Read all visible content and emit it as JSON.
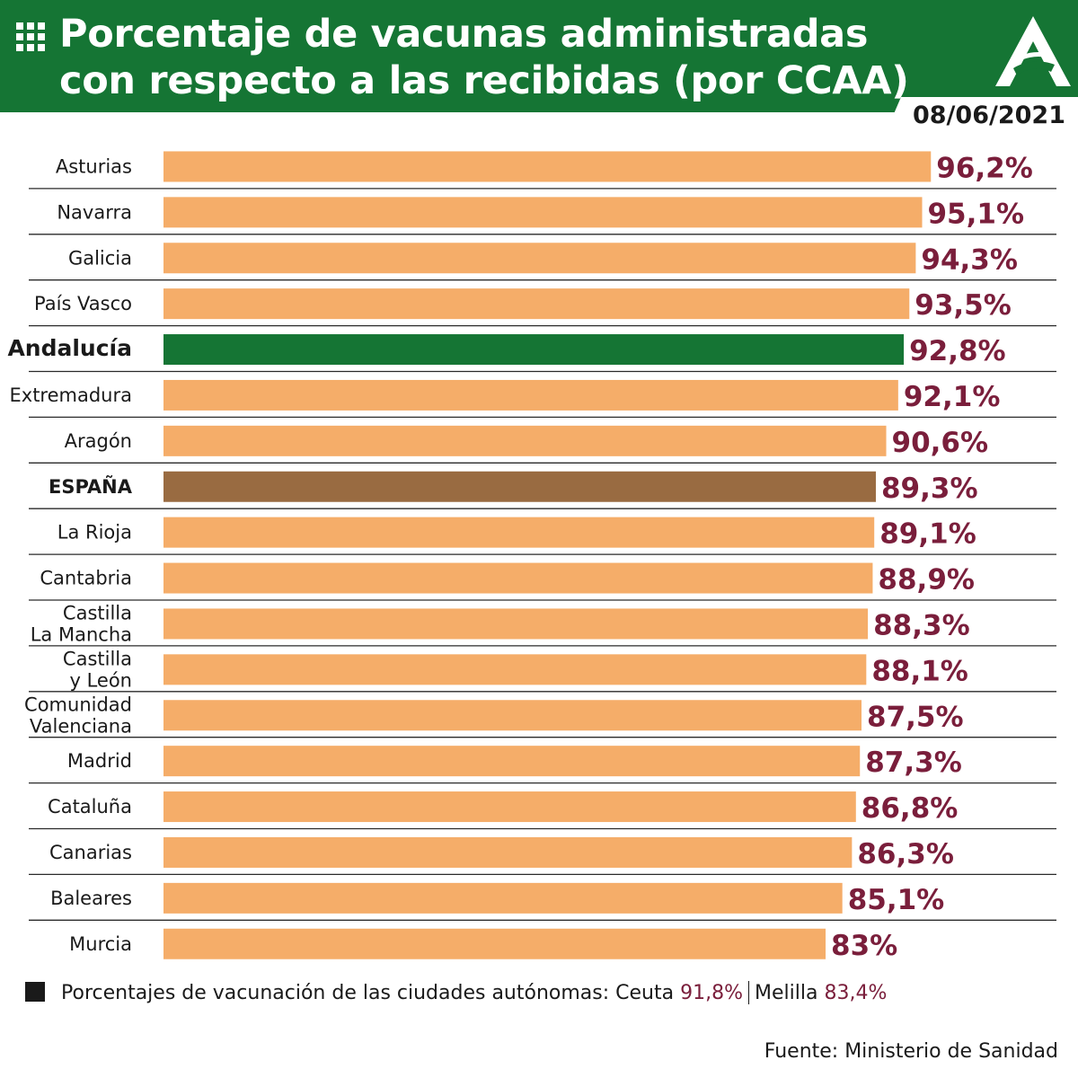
{
  "header": {
    "title": "Porcentaje de vacunas administradas con respecto a las recibidas (por CCAA)",
    "date": "08/06/2021",
    "icons": [
      "grid-icon",
      "junta-andalucia-logo"
    ]
  },
  "colors": {
    "header_bg": "#157534",
    "bar_default": "#F5AD69",
    "bar_andalucia": "#157534",
    "bar_espana": "#996B41",
    "value_text": "#7A1E3B"
  },
  "chart_data": {
    "type": "bar",
    "orientation": "horizontal",
    "title": "Porcentaje de vacunas administradas con respecto a las recibidas (por CCAA)",
    "categories": [
      "Asturias",
      "Navarra",
      "Galicia",
      "País Vasco",
      "Andalucía",
      "Extremadura",
      "Aragón",
      "ESPAÑA",
      "La Rioja",
      "Cantabria",
      "Castilla La Mancha",
      "Castilla y León",
      "Comunidad Valenciana",
      "Madrid",
      "Cataluña",
      "Canarias",
      "Baleares",
      "Murcia"
    ],
    "values": [
      96.2,
      95.1,
      94.3,
      93.5,
      92.8,
      92.1,
      90.6,
      89.3,
      89.1,
      88.9,
      88.3,
      88.1,
      87.5,
      87.3,
      86.8,
      86.3,
      85.1,
      83.0
    ],
    "value_labels": [
      "96,2%",
      "95,1%",
      "94,3%",
      "93,5%",
      "92,8%",
      "92,1%",
      "90,6%",
      "89,3%",
      "89,1%",
      "88,9%",
      "88,3%",
      "88,1%",
      "87,5%",
      "87,3%",
      "86,8%",
      "86,3%",
      "85,1%",
      "83%"
    ],
    "highlight": {
      "Andalucía": "green",
      "ESPAÑA": "brown"
    },
    "bold_categories": [
      "Andalucía",
      "ESPAÑA"
    ],
    "xlim": [
      0,
      100
    ],
    "grid": false
  },
  "legend": {
    "label": "Porcentajes de vacunación de las ciudades autónomas:",
    "ceuta_label": "Ceuta",
    "ceuta_value": "91,8%",
    "melilla_label": "Melilla",
    "melilla_value": "83,4%"
  },
  "source": "Fuente: Ministerio de Sanidad"
}
